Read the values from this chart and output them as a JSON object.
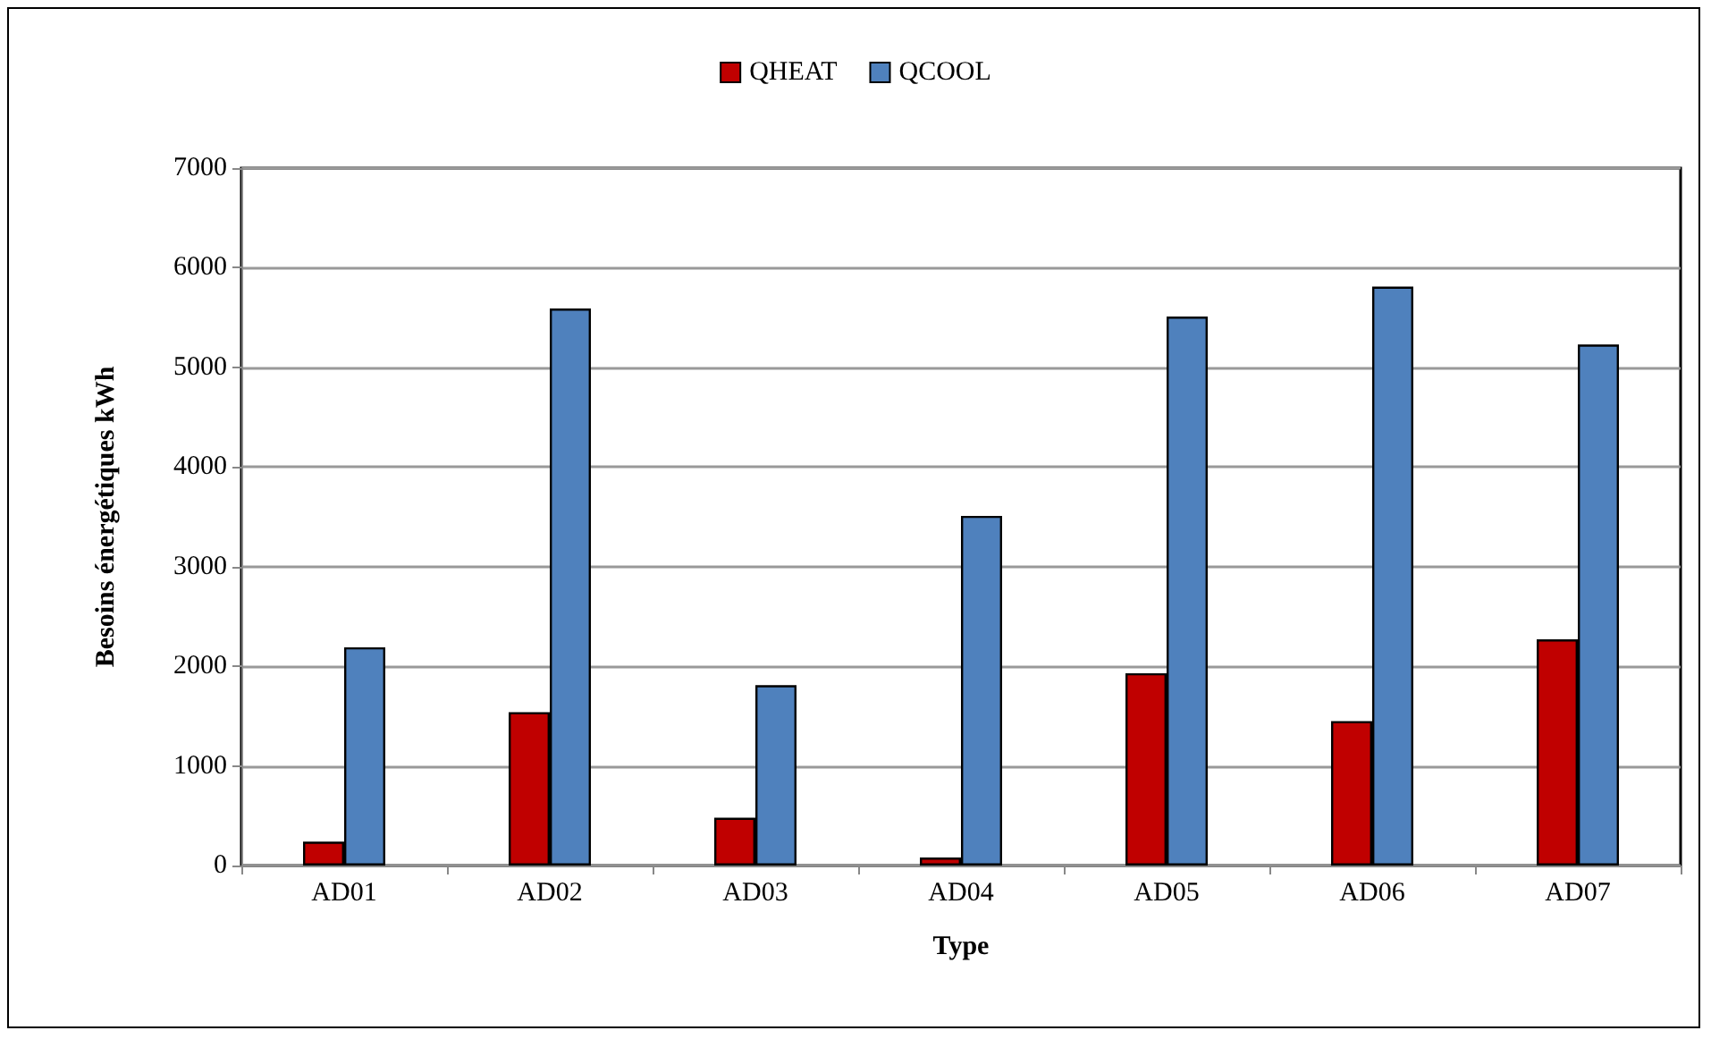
{
  "chart_data": {
    "type": "bar",
    "xlabel": "Type",
    "ylabel": "Besoins énergétiques kWh",
    "categories": [
      "AD01",
      "AD02",
      "AD03",
      "AD04",
      "AD05",
      "AD06",
      "AD07"
    ],
    "series": [
      {
        "name": "QHEAT",
        "color": "#c00000",
        "values": [
          240,
          1540,
          480,
          80,
          1930,
          1450,
          2270
        ]
      },
      {
        "name": "QCOOL",
        "color": "#4f81bd",
        "values": [
          2190,
          5590,
          1810,
          3510,
          5510,
          5810,
          5230
        ]
      }
    ],
    "ylim": [
      0,
      7000
    ],
    "yticks": [
      0,
      1000,
      2000,
      3000,
      4000,
      5000,
      6000,
      7000
    ],
    "grid": "y",
    "legend": "top"
  }
}
